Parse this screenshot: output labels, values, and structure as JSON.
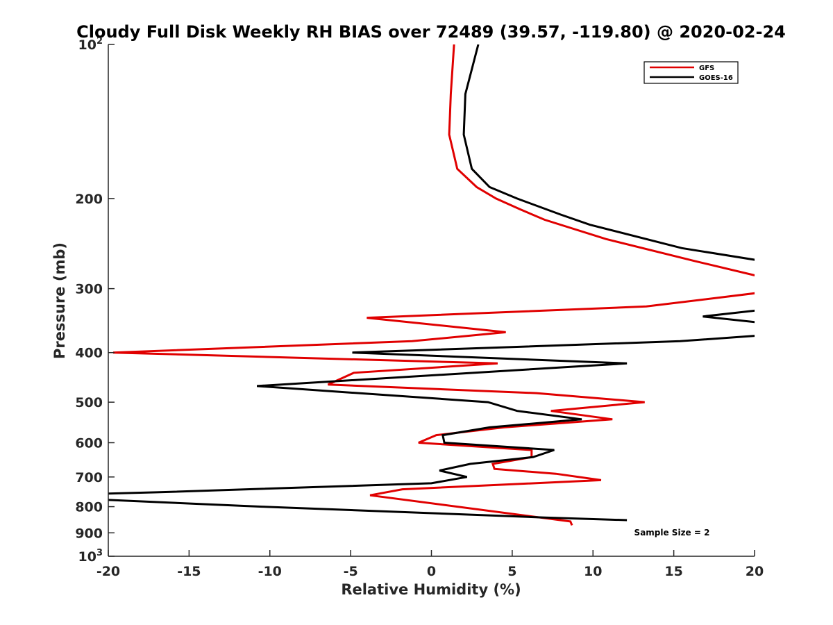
{
  "chart_data": {
    "type": "line",
    "title": "Cloudy Full Disk Weekly RH BIAS over 72489 (39.57, -119.80) @ 2020-02-24",
    "xlabel": "Relative Humidity (%)",
    "ylabel": "Pressure (mb)",
    "xlim": [
      -20,
      20
    ],
    "ylim": [
      100,
      1000
    ],
    "y_scale": "log",
    "y_reversed": true,
    "x_ticks": [
      "-20",
      "-15",
      "-10",
      "-5",
      "0",
      "5",
      "10",
      "15",
      "20"
    ],
    "y_ticks": [
      {
        "value": 100,
        "base": "10",
        "sup": "2"
      },
      {
        "value": 200,
        "base": "200",
        "sup": ""
      },
      {
        "value": 300,
        "base": "300",
        "sup": ""
      },
      {
        "value": 400,
        "base": "400",
        "sup": ""
      },
      {
        "value": 500,
        "base": "500",
        "sup": ""
      },
      {
        "value": 600,
        "base": "600",
        "sup": ""
      },
      {
        "value": 700,
        "base": "700",
        "sup": ""
      },
      {
        "value": 800,
        "base": "800",
        "sup": ""
      },
      {
        "value": 900,
        "base": "900",
        "sup": ""
      },
      {
        "value": 1000,
        "base": "10",
        "sup": "3"
      }
    ],
    "grid": false,
    "legend_position": "top-right",
    "annotation": "Sample Size = 2",
    "series": [
      {
        "name": "GFS",
        "color": "#e00000",
        "points": [
          [
            1.4,
            100
          ],
          [
            1.2,
            125
          ],
          [
            1.1,
            150
          ],
          [
            1.6,
            175
          ],
          [
            2.8,
            190
          ],
          [
            4.0,
            200
          ],
          [
            5.5,
            210
          ],
          [
            7.0,
            220
          ],
          [
            10.8,
            240
          ],
          [
            16.3,
            265
          ],
          [
            20.5,
            285
          ],
          [
            20.5,
            305
          ],
          [
            13.3,
            325
          ],
          [
            -4.0,
            342
          ],
          [
            4.6,
            365
          ],
          [
            -1.2,
            380
          ],
          [
            -19.7,
            400
          ],
          [
            4.1,
            420
          ],
          [
            -4.8,
            438
          ],
          [
            -6.4,
            462
          ],
          [
            6.5,
            480
          ],
          [
            13.2,
            500
          ],
          [
            7.4,
            520
          ],
          [
            11.2,
            540
          ],
          [
            4.5,
            560
          ],
          [
            0.3,
            580
          ],
          [
            -0.8,
            600
          ],
          [
            6.2,
            620
          ],
          [
            6.2,
            640
          ],
          [
            3.8,
            660
          ],
          [
            3.9,
            675
          ],
          [
            7.7,
            690
          ],
          [
            10.5,
            710
          ],
          [
            -1.8,
            740
          ],
          [
            -3.8,
            760
          ],
          [
            8.6,
            855
          ],
          [
            8.7,
            870
          ]
        ]
      },
      {
        "name": "GOES-16",
        "color": "#000000",
        "points": [
          [
            2.9,
            100
          ],
          [
            2.1,
            125
          ],
          [
            2.0,
            150
          ],
          [
            2.5,
            175
          ],
          [
            3.6,
            190
          ],
          [
            5.3,
            200
          ],
          [
            8.0,
            215
          ],
          [
            9.8,
            225
          ],
          [
            15.5,
            250
          ],
          [
            20.5,
            265
          ],
          [
            20.5,
            330
          ],
          [
            16.8,
            340
          ],
          [
            20.5,
            350
          ],
          [
            20.5,
            370
          ],
          [
            15.4,
            380
          ],
          [
            -4.9,
            400
          ],
          [
            12.1,
            420
          ],
          [
            -10.8,
            465
          ],
          [
            3.5,
            500
          ],
          [
            5.3,
            520
          ],
          [
            9.3,
            540
          ],
          [
            3.6,
            560
          ],
          [
            0.7,
            580
          ],
          [
            0.8,
            600
          ],
          [
            7.6,
            620
          ],
          [
            6.3,
            640
          ],
          [
            2.4,
            660
          ],
          [
            0.5,
            680
          ],
          [
            2.2,
            700
          ],
          [
            0.0,
            720
          ],
          [
            -17.0,
            750
          ],
          [
            -20.5,
            755
          ],
          [
            -20.5,
            775
          ],
          [
            -10.5,
            800
          ],
          [
            7.0,
            840
          ],
          [
            12.1,
            850
          ]
        ]
      }
    ]
  }
}
